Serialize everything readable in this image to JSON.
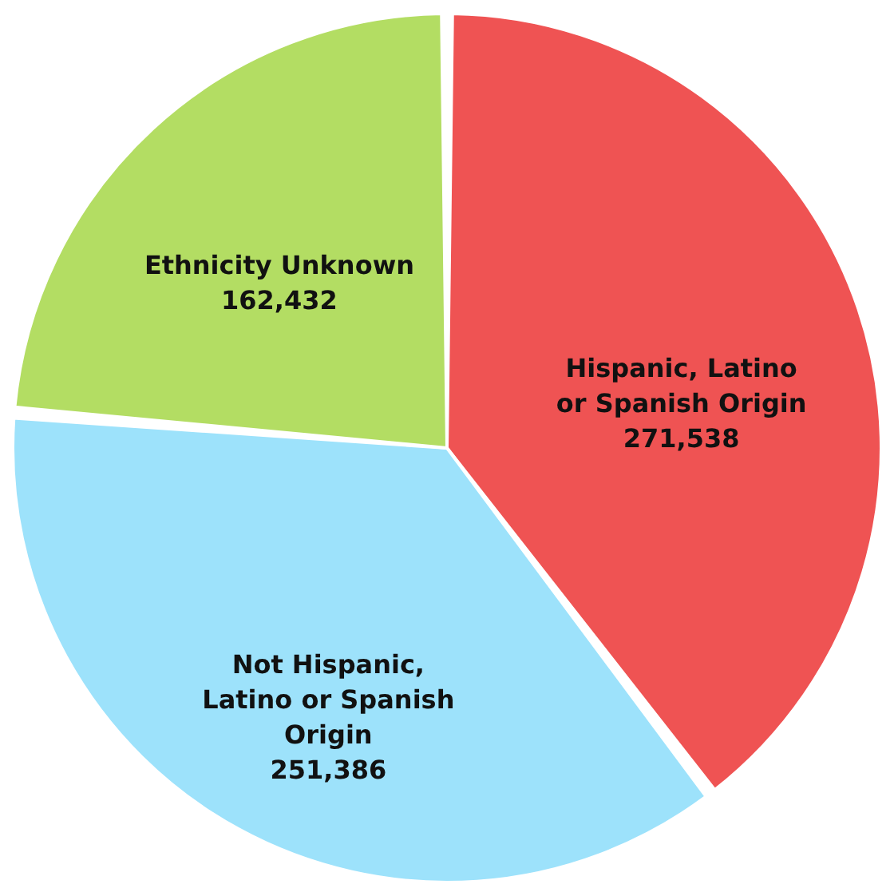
{
  "chart_data": {
    "type": "pie",
    "categories": [
      "Hispanic, Latino or Spanish Origin",
      "Not Hispanic, Latino or Spanish Origin",
      "Ethnicity Unknown"
    ],
    "values": [
      271538,
      251386,
      162432
    ],
    "colors": [
      "#ef5353",
      "#9de2fb",
      "#b3dd63"
    ],
    "value_labels": [
      "271,538",
      "251,386",
      "162,432"
    ]
  }
}
